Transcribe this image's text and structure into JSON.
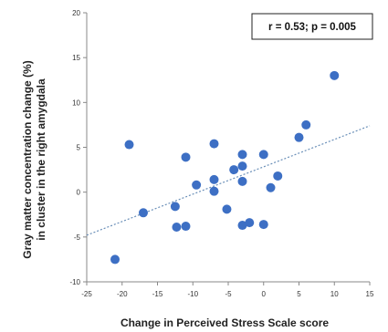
{
  "chart_data": {
    "type": "scatter",
    "title": "",
    "xlabel": "Change in Perceived Stress Scale score",
    "ylabel_line1": "Gray matter concentration change (%)",
    "ylabel_line2": "in cluster in the right amygdala",
    "annotation": "r = 0.53; p = 0.005",
    "xlim": [
      -25,
      15
    ],
    "ylim": [
      -10,
      20
    ],
    "xticks": [
      -25,
      -20,
      -15,
      -10,
      -5,
      0,
      5,
      10,
      15
    ],
    "yticks": [
      -10,
      -5,
      0,
      5,
      10,
      15,
      20
    ],
    "grid": false,
    "legend": false,
    "colors": {
      "point": "#3d6fc4",
      "trend": "#6a8fb8",
      "axis": "#888888"
    },
    "trendline": {
      "style": "dotted",
      "points": [
        [
          -25,
          -4.8
        ],
        [
          15,
          7.4
        ]
      ]
    },
    "points": [
      {
        "x": -21,
        "y": -7.5
      },
      {
        "x": -19,
        "y": 5.3
      },
      {
        "x": -17,
        "y": -2.3
      },
      {
        "x": -12.5,
        "y": -1.6
      },
      {
        "x": -12.3,
        "y": -3.9
      },
      {
        "x": -11,
        "y": -3.8
      },
      {
        "x": -11,
        "y": 3.9
      },
      {
        "x": -9.5,
        "y": 0.8
      },
      {
        "x": -7,
        "y": 5.4
      },
      {
        "x": -7,
        "y": 1.4
      },
      {
        "x": -7,
        "y": 0.1
      },
      {
        "x": -5.2,
        "y": -1.9
      },
      {
        "x": -4.2,
        "y": 2.5
      },
      {
        "x": -3,
        "y": 4.2
      },
      {
        "x": -3,
        "y": 2.9
      },
      {
        "x": -3,
        "y": 1.2
      },
      {
        "x": -3,
        "y": -3.7
      },
      {
        "x": -2,
        "y": -3.4
      },
      {
        "x": 0,
        "y": 4.2
      },
      {
        "x": 0,
        "y": -3.6
      },
      {
        "x": 1,
        "y": 0.5
      },
      {
        "x": 2,
        "y": 1.8
      },
      {
        "x": 5,
        "y": 6.1
      },
      {
        "x": 6,
        "y": 7.5
      },
      {
        "x": 10,
        "y": 13
      }
    ]
  }
}
